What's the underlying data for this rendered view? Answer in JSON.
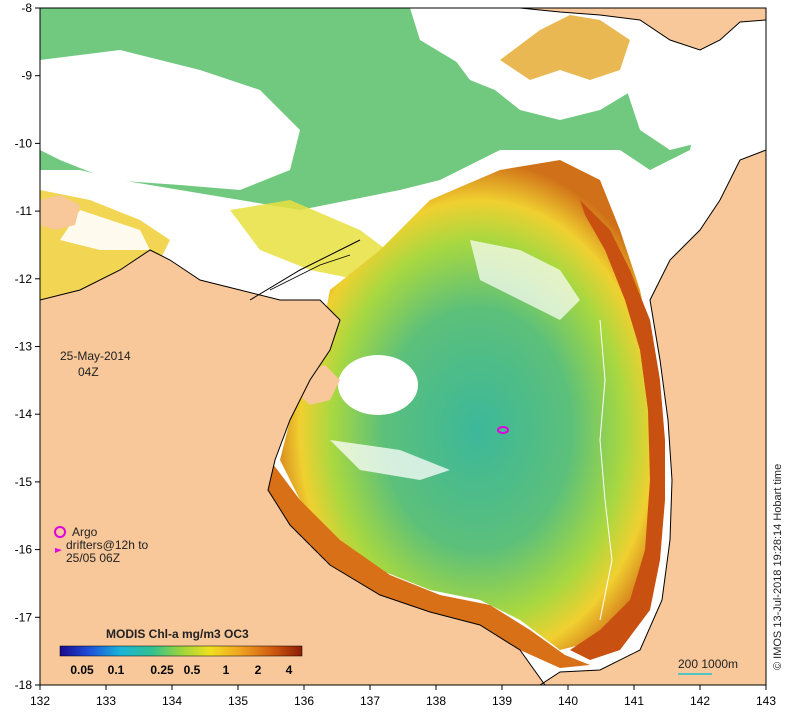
{
  "date_label": "25-May-2014",
  "time_label": "04Z",
  "legend": {
    "argo_label": "Argo",
    "drifters_line1": "drifters@12h to",
    "drifters_line2": "25/05 06Z"
  },
  "colorbar": {
    "title": "MODIS Chl-a mg/m3 OC3",
    "ticks": [
      "0.05",
      "0.1",
      "0.25",
      "0.5",
      "1",
      "2",
      "4"
    ]
  },
  "scale_bar": {
    "label": "200  1000m"
  },
  "credit": "© IMOS 13-Jul-2018 19:28:14 Hobart time",
  "axes": {
    "x_ticks": [
      "132",
      "133",
      "134",
      "135",
      "136",
      "137",
      "138",
      "139",
      "140",
      "141",
      "142",
      "143"
    ],
    "y_ticks": [
      "-8",
      "-9",
      "-10",
      "-11",
      "-12",
      "-13",
      "-14",
      "-15",
      "-16",
      "-17",
      "-18"
    ]
  },
  "colors": {
    "land": "#f8c79a",
    "cloud": "#ffffff",
    "chl_low": "#30b4a0",
    "chl_mid": "#9cd43c",
    "chl_high": "#f0a020",
    "chl_very_high": "#8c2c04",
    "argo": "#e000e0",
    "scale_bar": "#4fc7c0"
  }
}
